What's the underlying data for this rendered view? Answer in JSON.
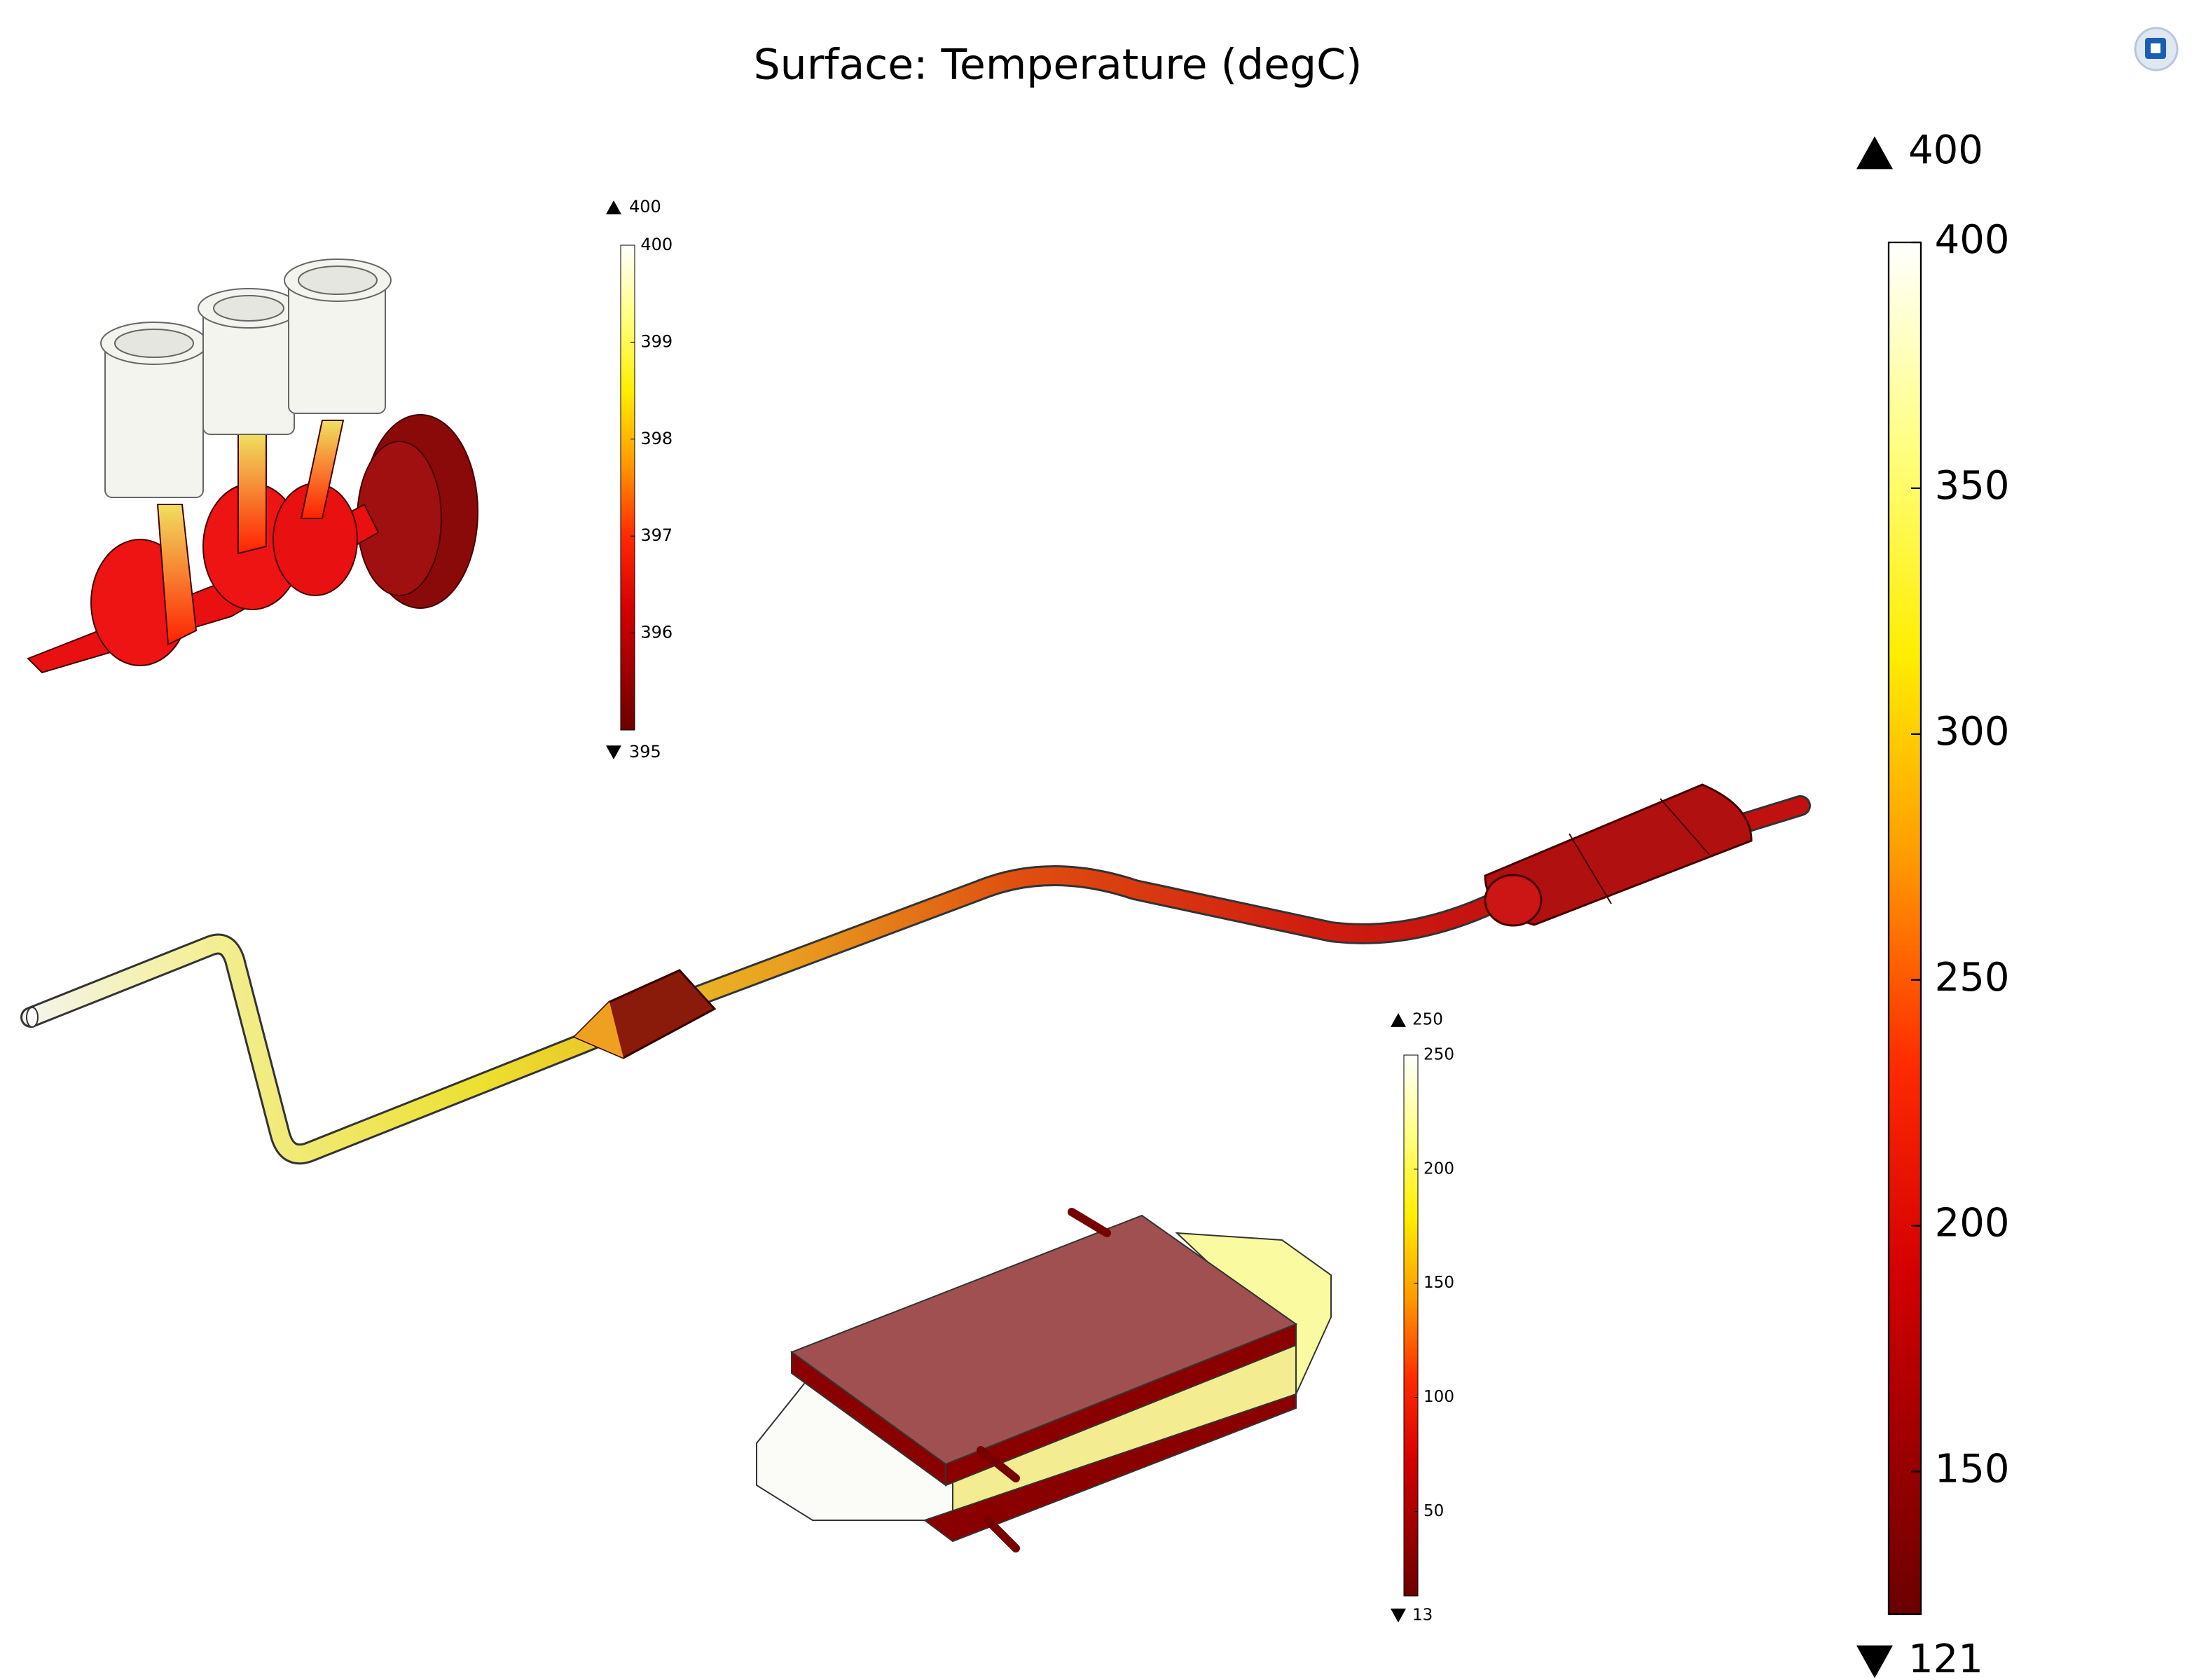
{
  "title": "Surface: Temperature (degC)",
  "legends": [
    {
      "max": 400,
      "min": 121,
      "ticks": [
        400,
        350,
        300,
        250,
        200,
        150
      ]
    },
    {
      "max": 400,
      "min": 395,
      "ticks": [
        400,
        399,
        398,
        397,
        396
      ]
    },
    {
      "max": 250,
      "min": 13,
      "ticks": [
        250,
        200,
        150,
        100,
        50
      ]
    }
  ]
}
